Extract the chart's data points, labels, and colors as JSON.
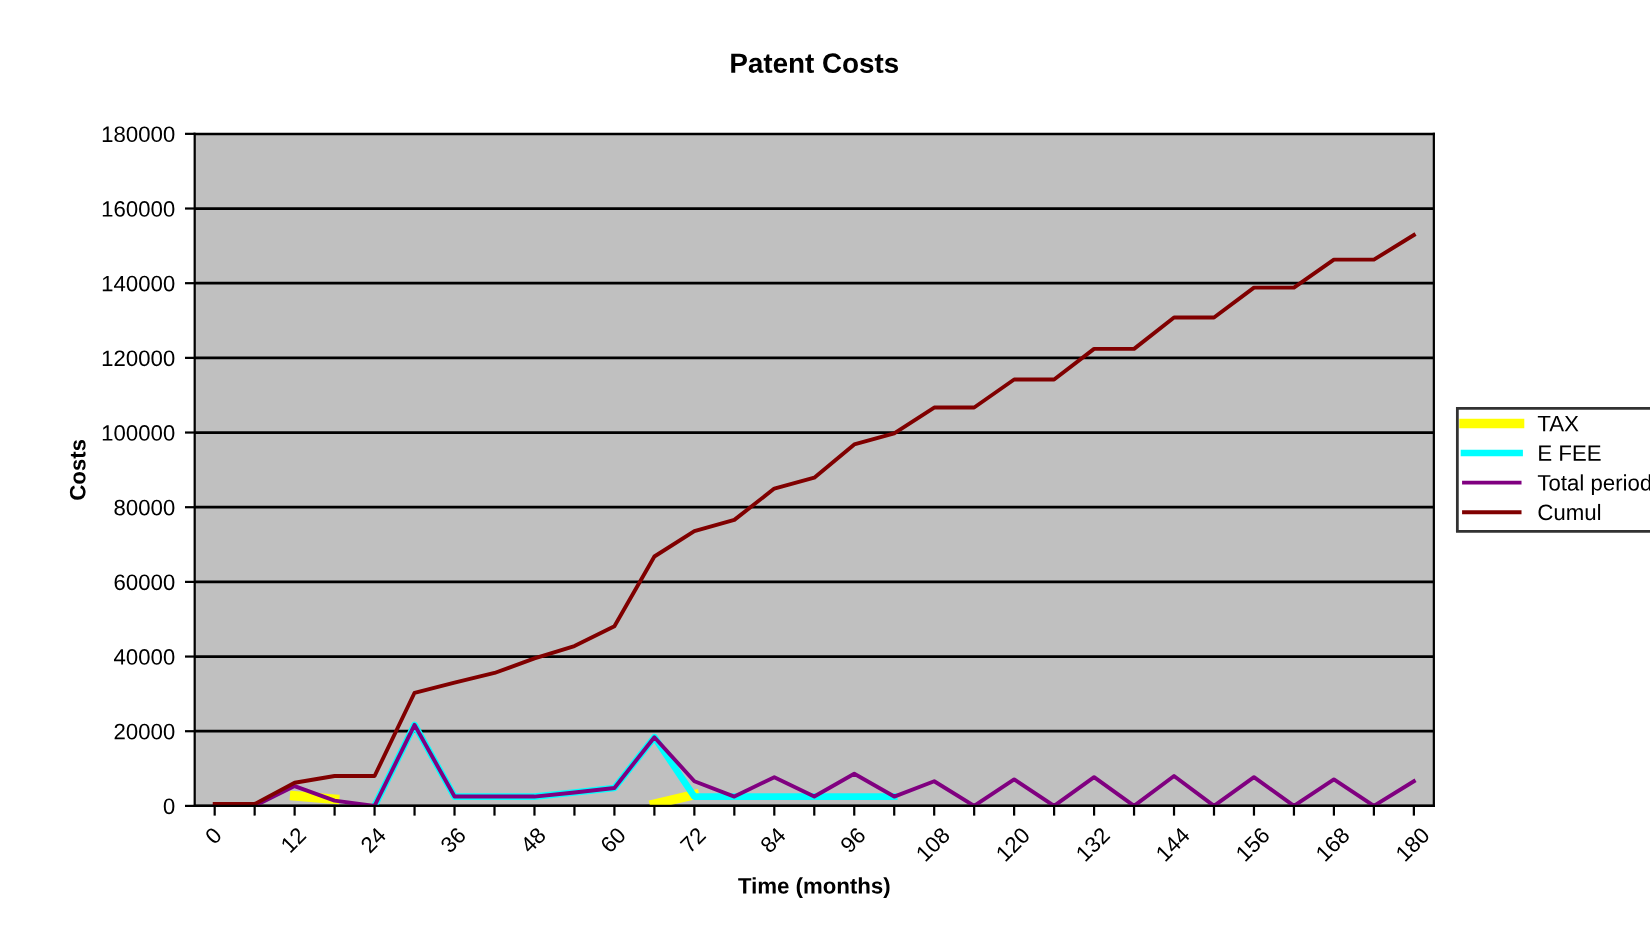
{
  "chart_data": {
    "type": "line",
    "title": "Patent Costs",
    "xlabel": "Time (months)",
    "ylabel": "Costs",
    "categories": [
      "0",
      null,
      "12",
      null,
      "24",
      null,
      "36",
      null,
      "48",
      null,
      "60",
      null,
      "72",
      null,
      "84",
      null,
      "96",
      null,
      "108",
      null,
      "120",
      null,
      "132",
      null,
      "144",
      null,
      "156",
      null,
      "168",
      null,
      "180"
    ],
    "series": [
      {
        "name": "TAX",
        "color": "#ffff00",
        "values": [
          null,
          null,
          2700,
          1800,
          null,
          null,
          null,
          null,
          null,
          null,
          null,
          500,
          3000,
          null,
          null,
          null,
          null,
          null,
          null,
          null,
          null,
          null,
          null,
          null,
          null,
          null,
          null,
          null,
          null,
          null,
          null
        ]
      },
      {
        "name": "E FEE",
        "color": "#00ffff",
        "values": [
          null,
          null,
          null,
          null,
          0,
          21700,
          2500,
          2500,
          2500,
          3600,
          4800,
          18400,
          2500,
          2500,
          2500,
          2500,
          2500,
          2500,
          null,
          null,
          null,
          null,
          null,
          null,
          null,
          null,
          null,
          null,
          null,
          null,
          null
        ]
      },
      {
        "name": "Total period",
        "color": "#800080",
        "values": [
          0,
          0,
          5300,
          1400,
          0,
          21700,
          2500,
          2500,
          2500,
          3600,
          4800,
          18400,
          6600,
          2500,
          7700,
          2500,
          8600,
          2500,
          6600,
          0,
          7100,
          0,
          7700,
          0,
          8000,
          0,
          7700,
          0,
          7100,
          0,
          6600
        ]
      },
      {
        "name": "Cumul",
        "color": "#800000",
        "values": [
          500,
          500,
          6200,
          8000,
          8000,
          30300,
          33000,
          35600,
          39500,
          42800,
          48100,
          66800,
          73600,
          76600,
          85000,
          87900,
          96800,
          99800,
          106700,
          106700,
          114200,
          114200,
          122400,
          122400,
          130800,
          130800,
          138800,
          138800,
          146300,
          146300,
          152900
        ]
      }
    ],
    "ylim": [
      0,
      180000
    ],
    "yticks": [
      0,
      20000,
      40000,
      60000,
      80000,
      100000,
      120000,
      140000,
      160000,
      180000
    ],
    "grid": "y",
    "legend": "right",
    "marker": "none",
    "line_style": "solid"
  }
}
